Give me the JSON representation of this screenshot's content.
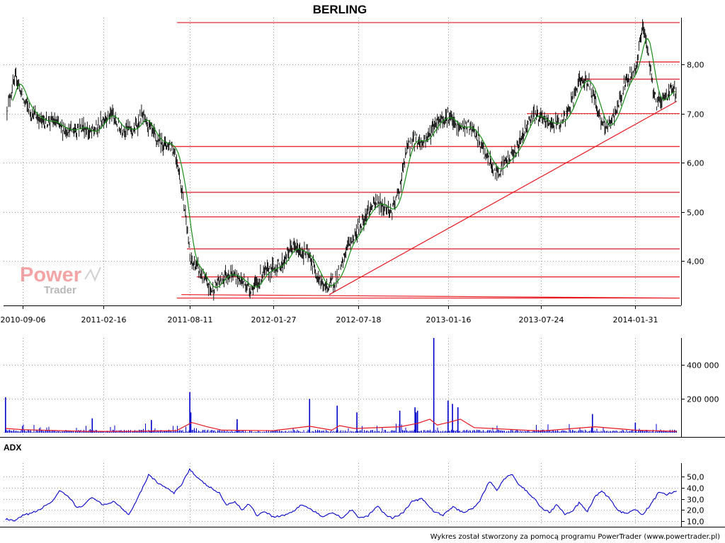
{
  "title": "BERLING",
  "footer": "Wykres został stworzony za pomocą programu PowerTrader (www.powertrader.pl)",
  "watermark": {
    "line1": "Power",
    "line2": "Trader"
  },
  "colors": {
    "candles": "#000000",
    "moving_average": "#1a8f1a",
    "support_lines": "#e8161f",
    "volume": "#0000cc",
    "volume_average": "#e8161f",
    "adx": "#0000cc",
    "grid": "#9a9a9a"
  },
  "chart_data": [
    {
      "type": "line",
      "panel": "price",
      "title": "BERLING",
      "x_ticks": [
        "2010-09-06",
        "2011-02-16",
        "2011-08-11",
        "2012-01-27",
        "2012-07-18",
        "2013-01-16",
        "2013-07-24",
        "2014-01-31"
      ],
      "y_ticks": [
        "4,00",
        "5,00",
        "6,00",
        "7,00",
        "8,00"
      ],
      "ylim": [
        3.1,
        8.95
      ],
      "y_scale": "linear",
      "grid": true,
      "series": [
        {
          "values_by_date": [
            [
              "2010-08-05",
              7.1
            ],
            [
              "2010-08-15",
              7.5
            ],
            [
              "2010-08-25",
              7.75
            ],
            [
              "2010-09-06",
              7.3
            ],
            [
              "2010-09-25",
              7.0
            ],
            [
              "2010-10-15",
              6.85
            ],
            [
              "2010-11-05",
              6.85
            ],
            [
              "2010-11-25",
              6.7
            ],
            [
              "2010-12-15",
              6.65
            ],
            [
              "2011-01-05",
              6.75
            ],
            [
              "2011-01-20",
              6.6
            ],
            [
              "2011-02-05",
              6.7
            ],
            [
              "2011-02-16",
              6.9
            ],
            [
              "2011-03-05",
              7.0
            ],
            [
              "2011-03-20",
              6.7
            ],
            [
              "2011-04-05",
              6.7
            ],
            [
              "2011-04-20",
              6.65
            ],
            [
              "2011-05-05",
              6.95
            ],
            [
              "2011-05-20",
              6.75
            ],
            [
              "2011-06-05",
              6.45
            ],
            [
              "2011-06-20",
              6.4
            ],
            [
              "2011-07-05",
              6.35
            ],
            [
              "2011-07-15",
              6.1
            ],
            [
              "2011-07-25",
              5.5
            ],
            [
              "2011-08-05",
              4.8
            ],
            [
              "2011-08-11",
              4.0
            ],
            [
              "2011-08-25",
              3.9
            ],
            [
              "2011-09-10",
              3.6
            ],
            [
              "2011-09-25",
              3.4
            ],
            [
              "2011-10-10",
              3.6
            ],
            [
              "2011-10-25",
              3.75
            ],
            [
              "2011-11-10",
              3.7
            ],
            [
              "2011-11-25",
              3.6
            ],
            [
              "2011-12-10",
              3.45
            ],
            [
              "2011-12-25",
              3.5
            ],
            [
              "2012-01-05",
              3.75
            ],
            [
              "2012-01-27",
              3.85
            ],
            [
              "2012-02-15",
              3.95
            ],
            [
              "2012-03-05",
              4.3
            ],
            [
              "2012-03-20",
              4.2
            ],
            [
              "2012-04-05",
              4.15
            ],
            [
              "2012-04-20",
              3.85
            ],
            [
              "2012-05-10",
              3.45
            ],
            [
              "2012-05-25",
              3.55
            ],
            [
              "2012-06-10",
              3.75
            ],
            [
              "2012-06-25",
              4.3
            ],
            [
              "2012-07-10",
              4.5
            ],
            [
              "2012-07-18",
              4.65
            ],
            [
              "2012-08-05",
              5.0
            ],
            [
              "2012-08-25",
              5.2
            ],
            [
              "2012-09-10",
              5.1
            ],
            [
              "2012-09-25",
              5.0
            ],
            [
              "2012-10-10",
              5.5
            ],
            [
              "2012-10-25",
              6.3
            ],
            [
              "2012-11-10",
              6.5
            ],
            [
              "2012-11-25",
              6.4
            ],
            [
              "2012-12-10",
              6.6
            ],
            [
              "2012-12-25",
              6.85
            ],
            [
              "2013-01-16",
              6.95
            ],
            [
              "2013-02-05",
              6.7
            ],
            [
              "2013-02-25",
              6.75
            ],
            [
              "2013-03-15",
              6.55
            ],
            [
              "2013-04-05",
              6.1
            ],
            [
              "2013-04-25",
              5.8
            ],
            [
              "2013-05-10",
              6.0
            ],
            [
              "2013-05-25",
              6.15
            ],
            [
              "2013-06-10",
              6.4
            ],
            [
              "2013-06-25",
              6.8
            ],
            [
              "2013-07-10",
              7.0
            ],
            [
              "2013-07-24",
              6.9
            ],
            [
              "2013-08-10",
              6.8
            ],
            [
              "2013-08-25",
              6.8
            ],
            [
              "2013-09-10",
              6.9
            ],
            [
              "2013-09-25",
              7.25
            ],
            [
              "2013-10-10",
              7.65
            ],
            [
              "2013-10-25",
              7.7
            ],
            [
              "2013-11-10",
              7.3
            ],
            [
              "2013-11-25",
              6.75
            ],
            [
              "2013-12-10",
              6.75
            ],
            [
              "2013-12-25",
              7.1
            ],
            [
              "2014-01-10",
              7.6
            ],
            [
              "2014-01-31",
              7.9
            ],
            [
              "2014-02-15",
              8.8
            ],
            [
              "2014-02-25",
              8.3
            ],
            [
              "2014-03-05",
              7.7
            ],
            [
              "2014-03-15",
              7.2
            ],
            [
              "2014-03-25",
              7.3
            ],
            [
              "2014-04-05",
              7.35
            ],
            [
              "2014-04-15",
              7.55
            ],
            [
              "2014-04-25",
              7.35
            ]
          ]
        }
      ],
      "horizontal_levels": [
        3.25,
        3.68,
        4.25,
        4.9,
        5.4,
        6.0,
        6.33,
        7.0,
        7.7,
        8.05,
        8.85
      ],
      "trendlines": [
        {
          "from": [
            "2012-05-20",
            3.32
          ],
          "to": [
            "2014-04-25",
            7.25
          ]
        },
        {
          "from": [
            "2011-07-25",
            3.32
          ],
          "to": [
            "2014-04-25",
            3.25
          ]
        }
      ]
    },
    {
      "type": "bar",
      "panel": "volume",
      "y_ticks": [
        "200 000",
        "400 000"
      ],
      "ylim": [
        0,
        560000
      ],
      "grid": true,
      "spikes": [
        [
          "2010-08-02",
          210000
        ],
        [
          "2011-01-25",
          85000
        ],
        [
          "2011-05-25",
          75000
        ],
        [
          "2011-08-11",
          240000
        ],
        [
          "2011-08-13",
          120000
        ],
        [
          "2011-11-15",
          80000
        ],
        [
          "2012-04-10",
          200000
        ],
        [
          "2012-06-05",
          160000
        ],
        [
          "2012-07-15",
          120000
        ],
        [
          "2012-10-10",
          130000
        ],
        [
          "2012-11-10",
          150000
        ],
        [
          "2012-11-12",
          120000
        ],
        [
          "2012-11-15",
          130000
        ],
        [
          "2012-12-18",
          560000
        ],
        [
          "2013-01-16",
          190000
        ],
        [
          "2013-01-25",
          170000
        ],
        [
          "2013-02-05",
          150000
        ],
        [
          "2013-11-05",
          110000
        ],
        [
          "2014-01-31",
          60000
        ]
      ],
      "baseline_volume": 12000,
      "series": [
        {
          "values_by_date": [
            [
              "2010-08-02",
              25000
            ],
            [
              "2010-09-06",
              18000
            ],
            [
              "2011-01-15",
              8000
            ],
            [
              "2011-04-10",
              8000
            ],
            [
              "2011-07-15",
              12000
            ],
            [
              "2011-08-15",
              60000
            ],
            [
              "2011-09-15",
              35000
            ],
            [
              "2011-10-15",
              15000
            ],
            [
              "2012-01-27",
              12000
            ],
            [
              "2012-04-10",
              38000
            ],
            [
              "2012-05-25",
              15000
            ],
            [
              "2012-06-10",
              42000
            ],
            [
              "2012-07-10",
              25000
            ],
            [
              "2012-10-10",
              35000
            ],
            [
              "2012-11-15",
              55000
            ],
            [
              "2012-12-10",
              80000
            ],
            [
              "2012-12-25",
              45000
            ],
            [
              "2013-01-16",
              60000
            ],
            [
              "2013-02-10",
              80000
            ],
            [
              "2013-03-10",
              30000
            ],
            [
              "2013-07-24",
              10000
            ],
            [
              "2013-11-10",
              35000
            ],
            [
              "2014-01-31",
              15000
            ],
            [
              "2014-04-25",
              8000
            ]
          ]
        }
      ]
    },
    {
      "type": "line",
      "panel": "adx",
      "label": "ADX",
      "y_ticks": [
        "10,0",
        "20,0",
        "30,0",
        "40,0",
        "50,0"
      ],
      "ylim": [
        7,
        62
      ],
      "grid": true,
      "series": [
        {
          "values_by_date": [
            [
              "2010-08-02",
              12
            ],
            [
              "2010-08-20",
              10
            ],
            [
              "2010-09-06",
              15
            ],
            [
              "2010-10-05",
              19
            ],
            [
              "2010-11-05",
              28
            ],
            [
              "2010-11-20",
              37
            ],
            [
              "2010-12-10",
              31
            ],
            [
              "2010-12-25",
              22
            ],
            [
              "2011-01-10",
              25
            ],
            [
              "2011-01-25",
              32
            ],
            [
              "2011-02-16",
              24
            ],
            [
              "2011-03-10",
              28
            ],
            [
              "2011-03-25",
              22
            ],
            [
              "2011-04-10",
              16
            ],
            [
              "2011-05-05",
              38
            ],
            [
              "2011-05-20",
              52
            ],
            [
              "2011-06-05",
              45
            ],
            [
              "2011-06-20",
              41
            ],
            [
              "2011-07-10",
              35
            ],
            [
              "2011-07-25",
              43
            ],
            [
              "2011-08-11",
              57
            ],
            [
              "2011-08-25",
              49
            ],
            [
              "2011-09-15",
              42
            ],
            [
              "2011-10-10",
              35
            ],
            [
              "2011-10-25",
              24
            ],
            [
              "2011-11-10",
              28
            ],
            [
              "2011-11-25",
              20
            ],
            [
              "2011-12-10",
              26
            ],
            [
              "2011-12-25",
              15
            ],
            [
              "2012-01-10",
              19
            ],
            [
              "2012-01-27",
              14
            ],
            [
              "2012-02-15",
              15
            ],
            [
              "2012-03-05",
              18
            ],
            [
              "2012-03-25",
              25
            ],
            [
              "2012-04-15",
              20
            ],
            [
              "2012-05-05",
              14
            ],
            [
              "2012-05-25",
              18
            ],
            [
              "2012-06-15",
              13
            ],
            [
              "2012-07-05",
              21
            ],
            [
              "2012-07-18",
              13
            ],
            [
              "2012-08-05",
              14
            ],
            [
              "2012-08-25",
              24
            ],
            [
              "2012-09-10",
              16
            ],
            [
              "2012-09-25",
              13
            ],
            [
              "2012-10-15",
              17
            ],
            [
              "2012-11-05",
              28
            ],
            [
              "2012-11-25",
              30
            ],
            [
              "2012-12-15",
              20
            ],
            [
              "2013-01-05",
              15
            ],
            [
              "2013-01-25",
              23
            ],
            [
              "2013-02-15",
              18
            ],
            [
              "2013-03-05",
              21
            ],
            [
              "2013-03-20",
              27
            ],
            [
              "2013-04-10",
              46
            ],
            [
              "2013-04-25",
              38
            ],
            [
              "2013-05-10",
              48
            ],
            [
              "2013-05-25",
              52
            ],
            [
              "2013-06-10",
              42
            ],
            [
              "2013-06-25",
              37
            ],
            [
              "2013-07-10",
              30
            ],
            [
              "2013-07-24",
              22
            ],
            [
              "2013-08-10",
              18
            ],
            [
              "2013-08-25",
              25
            ],
            [
              "2013-09-10",
              16
            ],
            [
              "2013-09-25",
              19
            ],
            [
              "2013-10-10",
              27
            ],
            [
              "2013-10-25",
              18
            ],
            [
              "2013-11-10",
              32
            ],
            [
              "2013-11-25",
              37
            ],
            [
              "2013-12-10",
              30
            ],
            [
              "2013-12-25",
              20
            ],
            [
              "2014-01-10",
              17
            ],
            [
              "2014-01-31",
              20
            ],
            [
              "2014-02-15",
              16
            ],
            [
              "2014-03-05",
              26
            ],
            [
              "2014-03-20",
              36
            ],
            [
              "2014-04-05",
              34
            ],
            [
              "2014-04-25",
              37
            ]
          ]
        }
      ]
    }
  ]
}
